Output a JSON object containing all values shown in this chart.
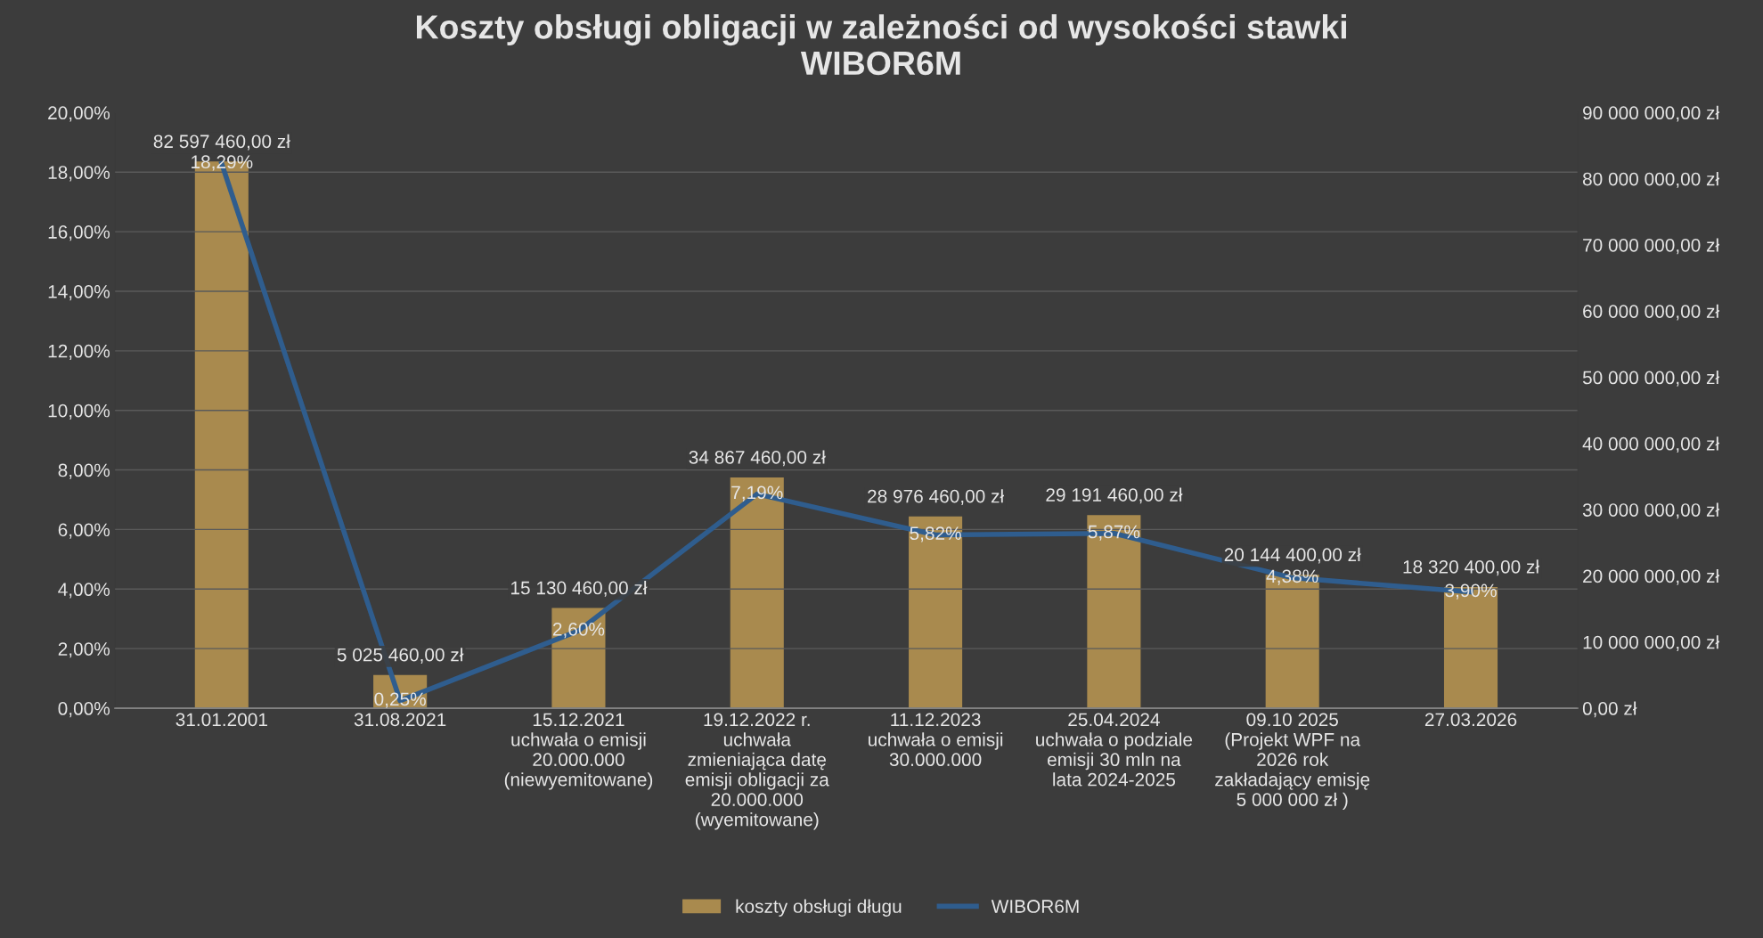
{
  "chart_data": {
    "type": "bar",
    "title": "Koszty obsługi obligacji w zależności od wysokości stawki\nWIBOR6M",
    "categories": [
      "31.01.2001",
      "31.08.2021",
      "15.12.2021\nuchwała o emisji\n20.000.000\n(niewyemitowane)",
      "19.12.2022 r.\nuchwała\nzmieniająca datę\nemisji obligacji za\n20.000.000\n(wyemitowane)",
      "11.12.2023\nuchwała o emisji\n30.000.000",
      "25.04.2024\nuchwała o podziale\nemisji 30 mln na\nlata 2024-2025",
      "09.10 2025\n(Projekt WPF na\n2026 rok\nzakładający emisję\n5 000 000 zł )",
      "27.03.2026"
    ],
    "series": [
      {
        "name": "koszty obsługi długu",
        "axis": "y2",
        "color": "#a98a4e",
        "values": [
          82597460,
          5025460,
          15130460,
          34867460,
          28976460,
          29191460,
          20144400,
          18320400
        ],
        "value_labels": [
          "82 597 460,00 zł",
          "5 025 460,00 zł",
          "15 130 460,00 zł",
          "34 867 460,00 zł",
          "28 976 460,00 zł",
          "29 191 460,00 zł",
          "20 144 400,00 zł",
          "18 320 400,00 zł"
        ]
      },
      {
        "name": "WIBOR6M",
        "type": "line",
        "axis": "y",
        "color": "#2f5d8e",
        "values": [
          18.29,
          0.25,
          2.6,
          7.19,
          5.82,
          5.87,
          4.38,
          3.9
        ],
        "value_labels": [
          "18,29%",
          "0,25%",
          "2,60%",
          "7,19%",
          "5,82%",
          "5,87%",
          "4,38%",
          "3,90%"
        ]
      }
    ],
    "ylim": [
      0,
      20
    ],
    "yticks": [
      {
        "value": 0,
        "label": "0,00%"
      },
      {
        "value": 2,
        "label": "2,00%"
      },
      {
        "value": 4,
        "label": "4,00%"
      },
      {
        "value": 6,
        "label": "6,00%"
      },
      {
        "value": 8,
        "label": "8,00%"
      },
      {
        "value": 10,
        "label": "10,00%"
      },
      {
        "value": 12,
        "label": "12,00%"
      },
      {
        "value": 14,
        "label": "14,00%"
      },
      {
        "value": 16,
        "label": "16,00%"
      },
      {
        "value": 18,
        "label": "18,00%"
      },
      {
        "value": 20,
        "label": "20,00%"
      }
    ],
    "y2lim": [
      0,
      90000000
    ],
    "y2ticks": [
      {
        "value": 0,
        "label": "0,00 zł"
      },
      {
        "value": 10000000,
        "label": "10 000 000,00 zł"
      },
      {
        "value": 20000000,
        "label": "20 000 000,00 zł"
      },
      {
        "value": 30000000,
        "label": "30 000 000,00 zł"
      },
      {
        "value": 40000000,
        "label": "40 000 000,00 zł"
      },
      {
        "value": 50000000,
        "label": "50 000 000,00 zł"
      },
      {
        "value": 60000000,
        "label": "60 000 000,00 zł"
      },
      {
        "value": 70000000,
        "label": "70 000 000,00 zł"
      },
      {
        "value": 80000000,
        "label": "80 000 000,00 zł"
      },
      {
        "value": 90000000,
        "label": "90 000 000,00 zł"
      }
    ],
    "grid": "y",
    "legend": "bottom",
    "marker": "none",
    "line_style": "solid"
  }
}
